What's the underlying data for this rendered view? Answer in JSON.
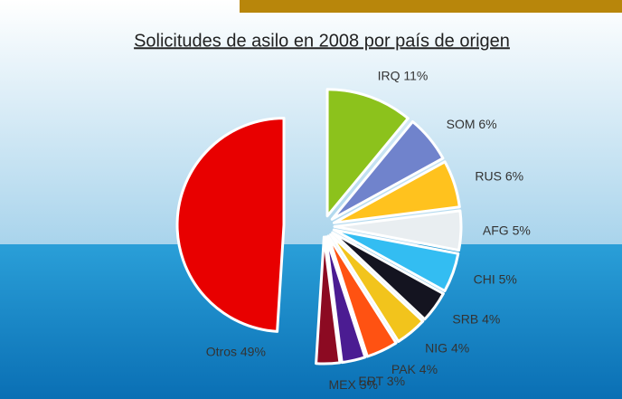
{
  "chart_data": {
    "type": "pie",
    "title": "Solicitudes de asilo en 2008 por país de origen",
    "categories": [
      "IRQ",
      "SOM",
      "RUS",
      "AFG",
      "CHI",
      "SRB",
      "NIG",
      "PAK",
      "ERT",
      "MEX",
      "Otros"
    ],
    "values": [
      11,
      6,
      6,
      5,
      5,
      4,
      4,
      4,
      3,
      3,
      49
    ],
    "value_labels": [
      "11%",
      "6%",
      "6%",
      "5%",
      "5%",
      "4%",
      "4%",
      "4%",
      "3%",
      "3%",
      "49%"
    ],
    "colors": [
      "#8cc21c",
      "#7083cc",
      "#ffc21e",
      "#e9eef1",
      "#33bdf2",
      "#141420",
      "#f2c41c",
      "#ff5212",
      "#4b1c92",
      "#8c0a22",
      "#e80000"
    ]
  }
}
